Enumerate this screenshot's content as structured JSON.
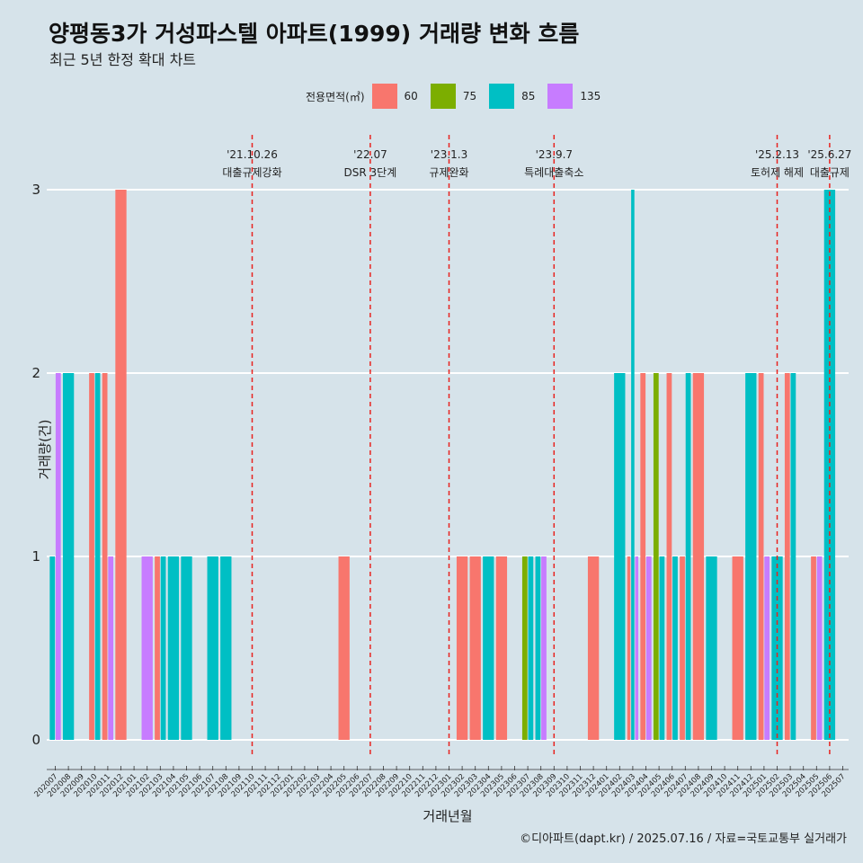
{
  "title": "양평동3가 거성파스텔 아파트(1999) 거래량 변화 흐름",
  "subtitle": "최근 5년 한정 확대 차트",
  "caption": "©디아파트(dapt.kr) / 2025.07.16 / 자료=국토교통부 실거래가",
  "colors": {
    "60": "#f8766d",
    "75": "#7cae00",
    "85": "#00bfc4",
    "135": "#c77cff",
    "vline": "#e8231f",
    "background": "#d6e3ea",
    "grid": "#ffffff"
  },
  "chart_data": {
    "type": "bar",
    "title": "양평동3가 거성파스텔 아파트(1999) 거래량 변화 흐름",
    "xlabel": "거래년월",
    "ylabel": "거래량(건)",
    "ylim": [
      0,
      3
    ],
    "yticks": [
      0,
      1,
      2,
      3
    ],
    "legend_title": "전용면적(㎡)",
    "legend_position": "top",
    "grid": true,
    "categories": [
      "202007",
      "202008",
      "202009",
      "202010",
      "202011",
      "202012",
      "202101",
      "202102",
      "202103",
      "202104",
      "202105",
      "202106",
      "202107",
      "202108",
      "202109",
      "202110",
      "202111",
      "202112",
      "202201",
      "202202",
      "202203",
      "202204",
      "202205",
      "202206",
      "202207",
      "202208",
      "202209",
      "202210",
      "202211",
      "202212",
      "202301",
      "202302",
      "202303",
      "202304",
      "202305",
      "202306",
      "202307",
      "202308",
      "202309",
      "202310",
      "202311",
      "202312",
      "202401",
      "202402",
      "202403",
      "202404",
      "202405",
      "202406",
      "202407",
      "202408",
      "202409",
      "202410",
      "202411",
      "202412",
      "202501",
      "202502",
      "202503",
      "202504",
      "202505",
      "202506",
      "202507"
    ],
    "series": [
      {
        "name": "60",
        "values": [
          0,
          0,
          0,
          2,
          2,
          3,
          0,
          0,
          1,
          0,
          0,
          0,
          0,
          0,
          0,
          0,
          0,
          0,
          0,
          0,
          0,
          0,
          1,
          0,
          0,
          0,
          0,
          0,
          0,
          0,
          0,
          1,
          1,
          0,
          1,
          0,
          0,
          0,
          0,
          0,
          0,
          1,
          0,
          0,
          1,
          2,
          0,
          2,
          1,
          2,
          0,
          0,
          1,
          0,
          2,
          0,
          2,
          0,
          1,
          0,
          0
        ]
      },
      {
        "name": "75",
        "values": [
          0,
          0,
          0,
          0,
          0,
          0,
          0,
          0,
          0,
          0,
          0,
          0,
          0,
          0,
          0,
          0,
          0,
          0,
          0,
          0,
          0,
          0,
          0,
          0,
          0,
          0,
          0,
          0,
          0,
          0,
          0,
          0,
          0,
          0,
          0,
          0,
          1,
          0,
          0,
          0,
          0,
          0,
          0,
          0,
          0,
          0,
          2,
          0,
          0,
          0,
          0,
          0,
          0,
          0,
          0,
          0,
          0,
          0,
          0,
          0,
          0
        ]
      },
      {
        "name": "85",
        "values": [
          1,
          2,
          0,
          2,
          0,
          0,
          0,
          0,
          1,
          1,
          1,
          0,
          1,
          1,
          0,
          0,
          0,
          0,
          0,
          0,
          0,
          0,
          0,
          0,
          0,
          0,
          0,
          0,
          0,
          0,
          0,
          0,
          0,
          1,
          0,
          0,
          1,
          1,
          0,
          0,
          0,
          0,
          0,
          2,
          3,
          0,
          1,
          1,
          2,
          0,
          1,
          0,
          0,
          2,
          0,
          1,
          2,
          0,
          0,
          3,
          0
        ]
      },
      {
        "name": "135",
        "values": [
          2,
          0,
          0,
          0,
          1,
          0,
          0,
          1,
          0,
          0,
          0,
          0,
          0,
          0,
          0,
          0,
          0,
          0,
          0,
          0,
          0,
          0,
          0,
          0,
          0,
          0,
          0,
          0,
          0,
          0,
          0,
          0,
          0,
          0,
          0,
          0,
          0,
          1,
          0,
          0,
          0,
          0,
          0,
          0,
          1,
          1,
          0,
          0,
          0,
          0,
          0,
          0,
          0,
          0,
          1,
          0,
          0,
          0,
          1,
          0,
          0
        ]
      }
    ],
    "annotations": [
      {
        "x": "202110",
        "date": "'21.10.26",
        "label": "대출규제강화"
      },
      {
        "x": "202207",
        "date": "'22.07",
        "label": "DSR 3단계"
      },
      {
        "x": "202301",
        "date": "'23.1.3",
        "label": "규제완화"
      },
      {
        "x": "202309",
        "date": "'23.9.7",
        "label": "특례대출축소"
      },
      {
        "x": "202502",
        "date": "'25.2.13",
        "label": "토허제 해제"
      },
      {
        "x": "202506",
        "date": "'25.6.27",
        "label": "대출규제"
      }
    ]
  }
}
